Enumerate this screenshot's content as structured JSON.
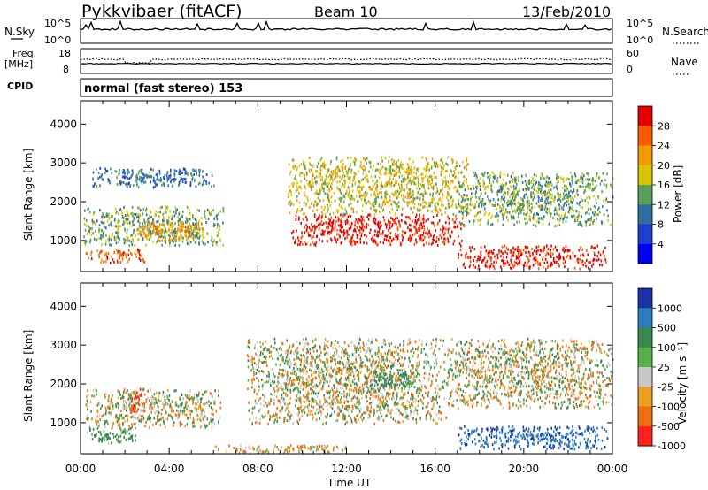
{
  "header": {
    "station": "Pykkvibaer (fitACF)",
    "beam": "Beam 10",
    "date": "13/Feb/2010"
  },
  "noise_panel": {
    "left_label": "N.Sky",
    "right_label": "N.Search",
    "left_ticks": [
      "10^5",
      "10^0"
    ],
    "right_ticks": [
      "10^5",
      "10^0"
    ]
  },
  "freq_panel": {
    "left_label": "Freq.",
    "left_unit": "[MHz]",
    "right_label": "Nave",
    "left_ticks": [
      "18",
      "8"
    ],
    "right_ticks": [
      "60",
      "0"
    ]
  },
  "cpid_panel": {
    "label": "CPID",
    "mode_text": "normal (fast stereo) 153"
  },
  "power_panel": {
    "ylabel": "Slant Range [km]",
    "colorbar_label": "Power [dB]",
    "colorbar_ticks": [
      "28",
      "24",
      "20",
      "16",
      "12",
      "8",
      "4"
    ],
    "colorbar_colors": [
      "#e60000",
      "#ff5a00",
      "#f59a00",
      "#d9c400",
      "#5aa05a",
      "#2f6f9f",
      "#1f3fd0",
      "#0000f0"
    ]
  },
  "velocity_panel": {
    "ylabel": "Slant Range [km]",
    "colorbar_label": "Velocity [m s⁻¹]",
    "colorbar_ticks": [
      "1000",
      "500",
      "100",
      "25",
      "-25",
      "-100",
      "-500",
      "-1000"
    ],
    "colorbar_colors": [
      "#1c32a8",
      "#2a7ec0",
      "#3a8a50",
      "#58b04a",
      "#c8c8c8",
      "#f0a020",
      "#f07010",
      "#ff2020"
    ]
  },
  "x_axis": {
    "label": "Time UT",
    "ticks": [
      "00:00",
      "04:00",
      "08:00",
      "12:00",
      "16:00",
      "20:00",
      "00:00"
    ]
  },
  "chart_data": [
    {
      "type": "heatmap",
      "title": "Power",
      "xlabel": "Time UT",
      "ylabel": "Slant Range [km]",
      "xlim": [
        0,
        24
      ],
      "ylim": [
        200,
        4600
      ],
      "yticks": [
        1000,
        2000,
        3000,
        4000
      ],
      "colorbar": {
        "label": "Power [dB]",
        "ticks": [
          4,
          8,
          12,
          16,
          20,
          24,
          28
        ]
      },
      "regions": [
        {
          "t0": 0.1,
          "t1": 6.5,
          "r0": 900,
          "r1": 1900,
          "value": 12
        },
        {
          "t0": 0.2,
          "t1": 3.0,
          "r0": 450,
          "r1": 800,
          "value": 24
        },
        {
          "t0": 2.5,
          "t1": 5.6,
          "r0": 1000,
          "r1": 1500,
          "value": 20
        },
        {
          "t0": 9.5,
          "t1": 17.3,
          "r0": 900,
          "r1": 1700,
          "value": 28
        },
        {
          "t0": 9.3,
          "t1": 17.5,
          "r0": 1700,
          "r1": 3200,
          "value": 16
        },
        {
          "t0": 17.0,
          "t1": 23.7,
          "r0": 300,
          "r1": 900,
          "value": 28
        },
        {
          "t0": 17.0,
          "t1": 24.0,
          "r0": 1400,
          "r1": 2800,
          "value": 12
        },
        {
          "t0": 0.5,
          "t1": 6.0,
          "r0": 2400,
          "r1": 2900,
          "value": 8
        }
      ]
    },
    {
      "type": "heatmap",
      "title": "Velocity",
      "xlabel": "Time UT",
      "ylabel": "Slant Range [km]",
      "xlim": [
        0,
        24
      ],
      "ylim": [
        200,
        4600
      ],
      "yticks": [
        1000,
        2000,
        3000,
        4000
      ],
      "colorbar": {
        "label": "Velocity [m s-1]",
        "ticks": [
          1000,
          500,
          100,
          25,
          -25,
          -100,
          -500,
          -1000
        ]
      },
      "regions": [
        {
          "t0": 0.2,
          "t1": 6.3,
          "r0": 900,
          "r1": 1900,
          "value": 0
        },
        {
          "t0": 0.2,
          "t1": 2.5,
          "r0": 500,
          "r1": 900,
          "value": 150
        },
        {
          "t0": 2.2,
          "t1": 2.8,
          "r0": 1300,
          "r1": 1900,
          "value": -300
        },
        {
          "t0": 7.5,
          "t1": 16.5,
          "r0": 1000,
          "r1": 3200,
          "value": 0
        },
        {
          "t0": 13.2,
          "t1": 15.0,
          "r0": 1850,
          "r1": 2350,
          "value": 200
        },
        {
          "t0": 16.5,
          "t1": 24.0,
          "r0": 1400,
          "r1": 3200,
          "value": 0
        },
        {
          "t0": 17.0,
          "t1": 23.8,
          "r0": 350,
          "r1": 950,
          "value": 700
        },
        {
          "t0": 6.0,
          "t1": 12.0,
          "r0": 250,
          "r1": 450,
          "value": -80
        }
      ]
    }
  ]
}
